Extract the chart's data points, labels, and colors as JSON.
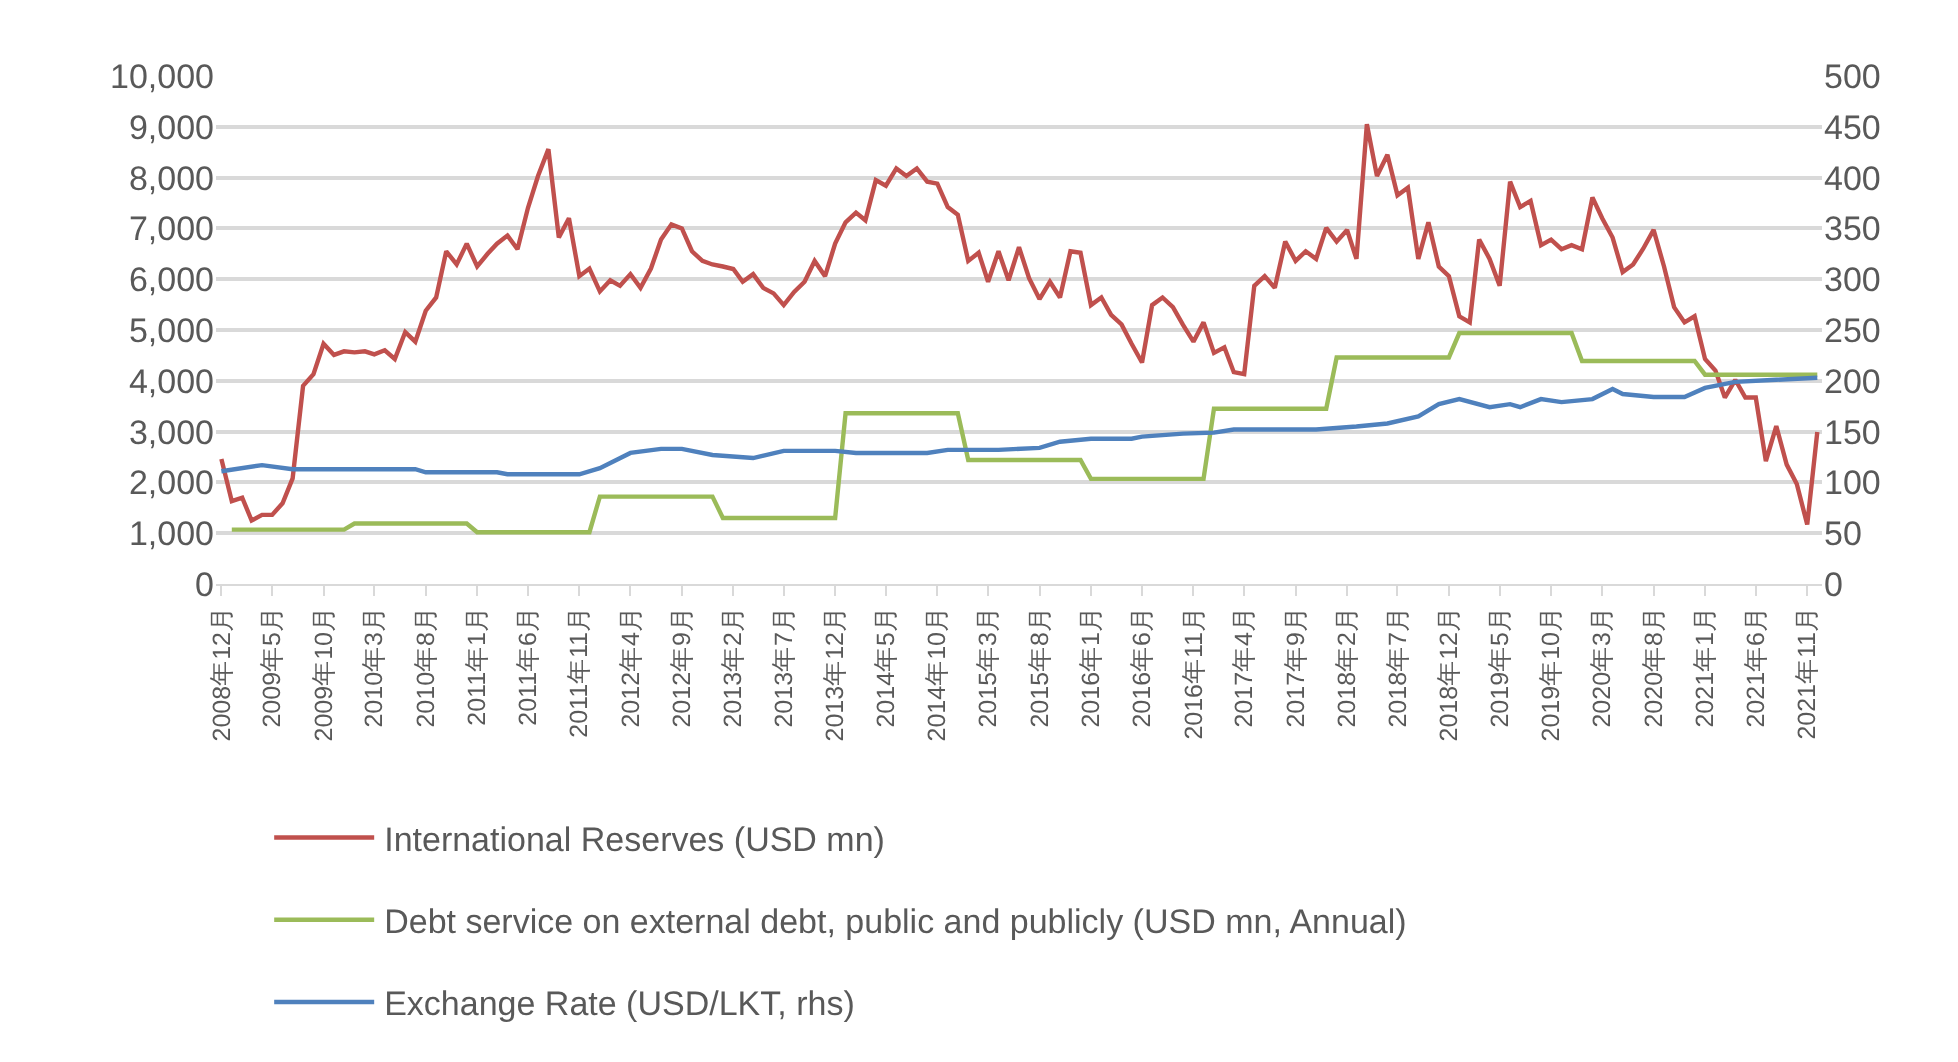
{
  "chart_data": {
    "type": "line",
    "xlim": [
      "2008-11-15",
      "2021-12-15"
    ],
    "xticks": [
      {
        "value": "2008-12",
        "label": "2008年12月"
      },
      {
        "value": "2009-05",
        "label": "2009年5月"
      },
      {
        "value": "2009-10",
        "label": "2009年10月"
      },
      {
        "value": "2010-03",
        "label": "2010年3月"
      },
      {
        "value": "2010-08",
        "label": "2010年8月"
      },
      {
        "value": "2011-01",
        "label": "2011年1月"
      },
      {
        "value": "2011-06",
        "label": "2011年6月"
      },
      {
        "value": "2011-11",
        "label": "2011年11月"
      },
      {
        "value": "2012-04",
        "label": "2012年4月"
      },
      {
        "value": "2012-09",
        "label": "2012年9月"
      },
      {
        "value": "2013-02",
        "label": "2013年2月"
      },
      {
        "value": "2013-07",
        "label": "2013年7月"
      },
      {
        "value": "2013-12",
        "label": "2013年12月"
      },
      {
        "value": "2014-05",
        "label": "2014年5月"
      },
      {
        "value": "2014-10",
        "label": "2014年10月"
      },
      {
        "value": "2015-03",
        "label": "2015年3月"
      },
      {
        "value": "2015-08",
        "label": "2015年8月"
      },
      {
        "value": "2016-01",
        "label": "2016年1月"
      },
      {
        "value": "2016-06",
        "label": "2016年6月"
      },
      {
        "value": "2016-11",
        "label": "2016年11月"
      },
      {
        "value": "2017-04",
        "label": "2017年4月"
      },
      {
        "value": "2017-09",
        "label": "2017年9月"
      },
      {
        "value": "2018-02",
        "label": "2018年2月"
      },
      {
        "value": "2018-07",
        "label": "2018年7月"
      },
      {
        "value": "2018-12",
        "label": "2018年12月"
      },
      {
        "value": "2019-05",
        "label": "2019年5月"
      },
      {
        "value": "2019-10",
        "label": "2019年10月"
      },
      {
        "value": "2020-03",
        "label": "2020年3月"
      },
      {
        "value": "2020-08",
        "label": "2020年8月"
      },
      {
        "value": "2021-01",
        "label": "2021年1月"
      },
      {
        "value": "2021-06",
        "label": "2021年6月"
      },
      {
        "value": "2021-11",
        "label": "2021年11月"
      }
    ],
    "ylim": [
      0,
      10000
    ],
    "yticks": [
      {
        "value": 0,
        "label": "0"
      },
      {
        "value": 1000,
        "label": "1,000"
      },
      {
        "value": 2000,
        "label": "2,000"
      },
      {
        "value": 3000,
        "label": "3,000"
      },
      {
        "value": 4000,
        "label": "4,000"
      },
      {
        "value": 5000,
        "label": "5,000"
      },
      {
        "value": 6000,
        "label": "6,000"
      },
      {
        "value": 7000,
        "label": "7,000"
      },
      {
        "value": 8000,
        "label": "8,000"
      },
      {
        "value": 9000,
        "label": "9,000"
      },
      {
        "value": 10000,
        "label": "10,000"
      }
    ],
    "y2lim": [
      0,
      500
    ],
    "y2ticks": [
      0,
      50,
      100,
      150,
      200,
      250,
      300,
      350,
      400,
      450,
      500
    ],
    "grid": "y",
    "legend": "bottom",
    "marker": "none",
    "line_style": "solid",
    "series": [
      {
        "name": "International Reserves (USD mn)",
        "color": "#c0504d",
        "x": [
          "2008-12",
          "2009-01",
          "2009-02",
          "2009-03",
          "2009-04",
          "2009-05",
          "2009-06",
          "2009-07",
          "2009-08",
          "2009-09",
          "2009-10",
          "2009-11",
          "2009-12",
          "2010-01",
          "2010-02",
          "2010-03",
          "2010-04",
          "2010-05",
          "2010-06",
          "2010-07",
          "2010-08",
          "2010-09",
          "2010-10",
          "2010-11",
          "2010-12",
          "2011-01",
          "2011-02",
          "2011-03",
          "2011-04",
          "2011-05",
          "2011-06",
          "2011-07",
          "2011-08",
          "2011-09",
          "2011-10",
          "2011-11",
          "2011-12",
          "2012-01",
          "2012-02",
          "2012-03",
          "2012-04",
          "2012-05",
          "2012-06",
          "2012-07",
          "2012-08",
          "2012-09",
          "2012-10",
          "2012-11",
          "2012-12",
          "2013-01",
          "2013-02",
          "2013-03",
          "2013-04",
          "2013-05",
          "2013-06",
          "2013-07",
          "2013-08",
          "2013-09",
          "2013-10",
          "2013-11",
          "2013-12",
          "2014-01",
          "2014-02",
          "2014-03",
          "2014-04",
          "2014-05",
          "2014-06",
          "2014-07",
          "2014-08",
          "2014-09",
          "2014-10",
          "2014-11",
          "2014-12",
          "2015-01",
          "2015-02",
          "2015-03",
          "2015-04",
          "2015-05",
          "2015-06",
          "2015-07",
          "2015-08",
          "2015-09",
          "2015-10",
          "2015-11",
          "2015-12",
          "2016-01",
          "2016-02",
          "2016-03",
          "2016-04",
          "2016-05",
          "2016-06",
          "2016-07",
          "2016-08",
          "2016-09",
          "2016-10",
          "2016-11",
          "2016-12",
          "2017-01",
          "2017-02",
          "2017-03",
          "2017-04",
          "2017-05",
          "2017-06",
          "2017-07",
          "2017-08",
          "2017-09",
          "2017-10",
          "2017-11",
          "2017-12",
          "2018-01",
          "2018-02",
          "2018-03",
          "2018-04",
          "2018-05",
          "2018-06",
          "2018-07",
          "2018-08",
          "2018-09",
          "2018-10",
          "2018-11",
          "2018-12",
          "2019-01",
          "2019-02",
          "2019-03",
          "2019-04",
          "2019-05",
          "2019-06",
          "2019-07",
          "2019-08",
          "2019-09",
          "2019-10",
          "2019-11",
          "2019-12",
          "2020-01",
          "2020-02",
          "2020-03",
          "2020-04",
          "2020-05",
          "2020-06",
          "2020-07",
          "2020-08",
          "2020-09",
          "2020-10",
          "2020-11",
          "2020-12",
          "2021-01",
          "2021-02",
          "2021-03",
          "2021-04",
          "2021-05",
          "2021-06",
          "2021-07",
          "2021-08",
          "2021-09",
          "2021-10",
          "2021-11",
          "2021-12"
        ],
        "values": [
          2460,
          1630,
          1700,
          1250,
          1360,
          1360,
          1590,
          2080,
          3900,
          4130,
          4730,
          4510,
          4580,
          4560,
          4580,
          4520,
          4600,
          4430,
          4960,
          4770,
          5380,
          5640,
          6550,
          6290,
          6700,
          6250,
          6500,
          6700,
          6860,
          6590,
          7400,
          8030,
          8560,
          6820,
          7200,
          6060,
          6210,
          5760,
          5980,
          5870,
          6100,
          5830,
          6210,
          6780,
          7080,
          7000,
          6550,
          6360,
          6290,
          6250,
          6200,
          5950,
          6100,
          5830,
          5720,
          5490,
          5750,
          5950,
          6360,
          6060,
          6700,
          7120,
          7310,
          7160,
          7950,
          7840,
          8180,
          8030,
          8180,
          7920,
          7880,
          7420,
          7270,
          6360,
          6520,
          5950,
          6550,
          5980,
          6630,
          6020,
          5610,
          5950,
          5640,
          6550,
          6520,
          5490,
          5640,
          5300,
          5110,
          4730,
          4360,
          5490,
          5640,
          5450,
          5100,
          4770,
          5150,
          4550,
          4660,
          4170,
          4130,
          5870,
          6060,
          5830,
          6740,
          6360,
          6550,
          6400,
          7010,
          6740,
          6970,
          6400,
          9050,
          8030,
          8450,
          7650,
          7800,
          6400,
          7120,
          6250,
          6060,
          5270,
          5150,
          6780,
          6400,
          5870,
          7920,
          7420,
          7540,
          6670,
          6780,
          6590,
          6670,
          6590,
          7610,
          7200,
          6820,
          6140,
          6290,
          6600,
          6970,
          6250,
          5450,
          5150,
          5270,
          4430,
          4200,
          3670,
          4020,
          3670,
          3670,
          2420,
          3110,
          2350,
          1970,
          1170,
          2990
        ]
      },
      {
        "name": "Debt service on external debt, public and publicly (USD mn, Annual)",
        "color": "#9bbb59",
        "x": [
          "2009-01",
          "2009-12",
          "2010-01",
          "2010-12",
          "2011-01",
          "2011-12",
          "2012-01",
          "2012-12",
          "2013-01",
          "2013-12",
          "2014-01",
          "2014-12",
          "2015-01",
          "2015-12",
          "2016-01",
          "2016-12",
          "2017-01",
          "2017-12",
          "2018-01",
          "2018-12",
          "2019-01",
          "2019-12",
          "2020-01",
          "2020-12",
          "2021-01",
          "2021-12"
        ],
        "values": [
          1070,
          1070,
          1190,
          1190,
          1020,
          1020,
          1720,
          1720,
          1300,
          1300,
          3360,
          3360,
          2440,
          2440,
          2070,
          2070,
          3450,
          3450,
          4460,
          4460,
          4940,
          4940,
          4390,
          4390,
          4120,
          4120
        ]
      },
      {
        "name": "Exchange Rate (USD/LKT, rhs)",
        "color": "#4f81bd",
        "axis": "y2",
        "x": [
          "2008-12",
          "2009-04",
          "2009-07",
          "2010-07",
          "2010-08",
          "2011-03",
          "2011-04",
          "2011-11",
          "2012-01",
          "2012-04",
          "2012-07",
          "2012-09",
          "2012-12",
          "2013-04",
          "2013-07",
          "2013-12",
          "2014-02",
          "2014-09",
          "2014-11",
          "2015-04",
          "2015-08",
          "2015-10",
          "2016-01",
          "2016-05",
          "2016-06",
          "2016-10",
          "2017-01",
          "2017-03",
          "2017-11",
          "2018-03",
          "2018-06",
          "2018-09",
          "2018-11",
          "2019-01",
          "2019-04",
          "2019-06",
          "2019-07",
          "2019-09",
          "2019-11",
          "2020-02",
          "2020-04",
          "2020-05",
          "2020-08",
          "2020-11",
          "2021-01",
          "2021-04",
          "2021-08",
          "2021-12"
        ],
        "values": [
          111,
          117,
          113,
          113,
          110,
          110,
          108,
          108,
          114,
          129,
          133,
          133,
          127,
          124,
          131,
          131,
          129,
          129,
          132,
          132,
          134,
          140,
          143,
          143,
          145,
          148,
          149,
          152,
          152,
          155,
          158,
          165,
          177,
          182,
          174,
          177,
          174,
          182,
          179,
          182,
          192,
          187,
          184,
          184,
          193,
          199,
          201,
          203
        ]
      }
    ]
  }
}
